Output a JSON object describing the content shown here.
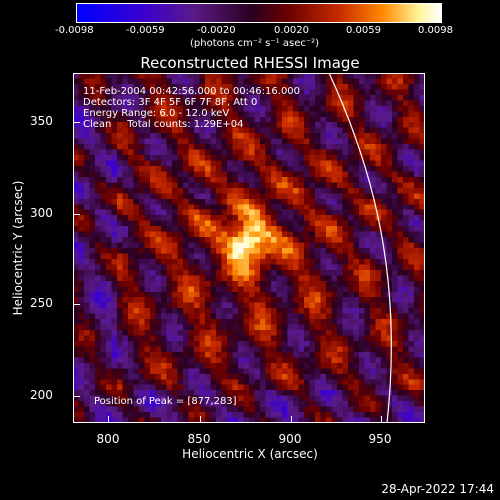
{
  "colorbar": {
    "ticks": [
      "-0.0098",
      "-0.0059",
      "-0.0020",
      "0.0020",
      "0.0059",
      "0.0098"
    ],
    "units": "(photons cm⁻² s⁻¹ asec⁻²)"
  },
  "title": "Reconstructed RHESSI Image",
  "info": {
    "line1": "11-Feb-2004 00:42:56.000 to 00:46:16.000",
    "line2": "Detectors: 3F 4F 5F 6F 7F 8F, Att 0",
    "line3": "Energy Range: 6.0 - 12.0 keV",
    "line4": "Clean     Total counts: 1.29E+04",
    "peak": "Position of Peak = [877,283]"
  },
  "axes": {
    "xlabel": "Heliocentric X (arcsec)",
    "ylabel": "Heliocentric Y (arcsec)",
    "xticks": [
      "800",
      "850",
      "900",
      "950"
    ],
    "yticks": [
      "350",
      "300",
      "250",
      "200"
    ],
    "xlim": [
      782,
      974
    ],
    "ylim": [
      184,
      376
    ]
  },
  "timestamp": "28-Apr-2022 17:44",
  "colors": {
    "limb": "#ffffff",
    "low": "#0000ff",
    "mid": "#2a0020",
    "high": "#ffffff"
  }
}
